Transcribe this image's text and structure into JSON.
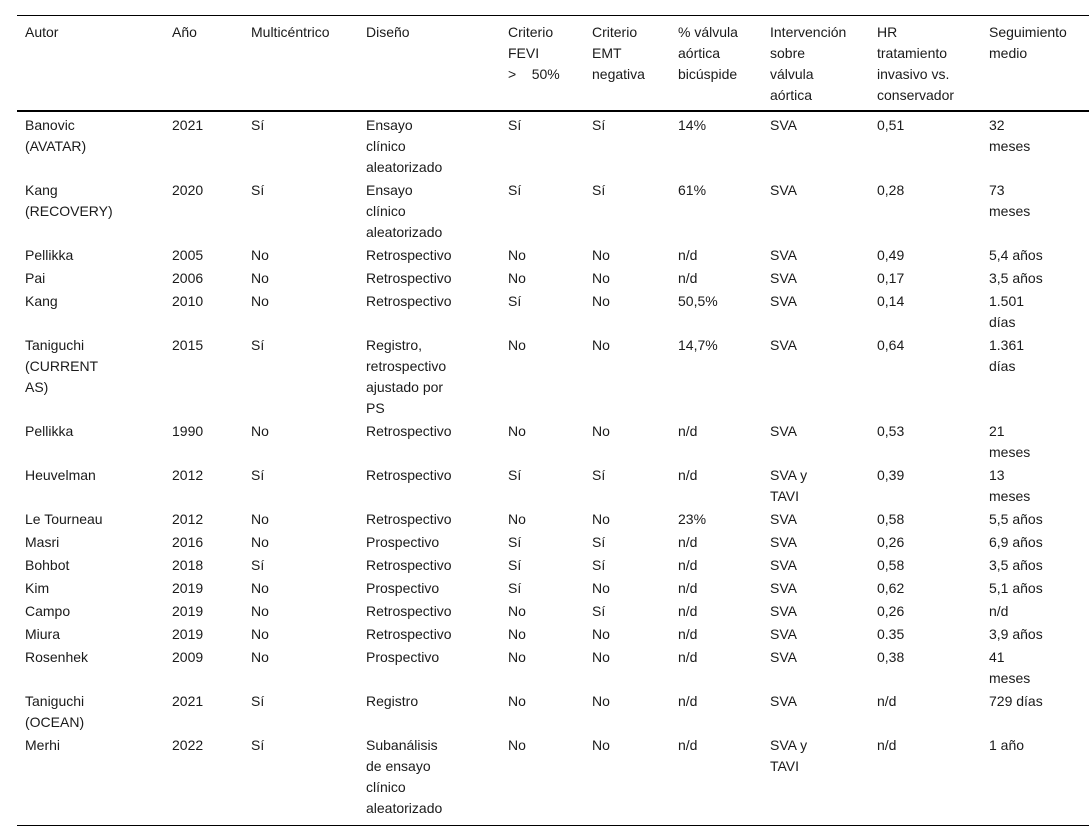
{
  "table": {
    "headers": [
      "Autor",
      "Año",
      "Multicéntrico",
      "Diseño",
      "Criterio\nFEVI\n>    50%",
      "Criterio\nEMT\nnegativa",
      "% válvula\naórtica\nbicúspide",
      "Intervención\nsobre\nválvula\naórtica",
      "HR\ntratamiento\ninvasivo vs.\nconservador",
      "Seguimiento\nmedio"
    ],
    "rows": [
      [
        "Banovic\n(AVATAR)",
        "2021",
        "Sí",
        "Ensayo\nclínico\naleatorizado",
        "Sí",
        "Sí",
        "14%",
        "SVA",
        "0,51",
        "32\nmeses"
      ],
      [
        "Kang\n(RECOVERY)",
        "2020",
        "Sí",
        "Ensayo\nclínico\naleatorizado",
        "Sí",
        "Sí",
        "61%",
        "SVA",
        "0,28",
        "73\nmeses"
      ],
      [
        "Pellikka",
        "2005",
        "No",
        "Retrospectivo",
        "No",
        "No",
        "n/d",
        "SVA",
        "0,49",
        "5,4 años"
      ],
      [
        "Pai",
        "2006",
        "No",
        "Retrospectivo",
        "No",
        "No",
        "n/d",
        "SVA",
        "0,17",
        "3,5 años"
      ],
      [
        "Kang",
        "2010",
        "No",
        "Retrospectivo",
        "Sí",
        "No",
        "50,5%",
        "SVA",
        "0,14",
        "1.501\ndías"
      ],
      [
        "Taniguchi\n(CURRENT\nAS)",
        "2015",
        "Sí",
        "Registro,\nretrospectivo\najustado por\nPS",
        "No",
        "No",
        "14,7%",
        "SVA",
        "0,64",
        "1.361\ndías"
      ],
      [
        "Pellikka",
        "1990",
        "No",
        "Retrospectivo",
        "No",
        "No",
        "n/d",
        "SVA",
        "0,53",
        "21\nmeses"
      ],
      [
        "Heuvelman",
        "2012",
        "Sí",
        "Retrospectivo",
        "Sí",
        "Sí",
        "n/d",
        "SVA y\nTAVI",
        "0,39",
        "13\nmeses"
      ],
      [
        "Le Tourneau",
        "2012",
        "No",
        "Retrospectivo",
        "No",
        "No",
        "23%",
        "SVA",
        "0,58",
        "5,5 años"
      ],
      [
        "Masri",
        "2016",
        "No",
        "Prospectivo",
        "Sí",
        "Sí",
        "n/d",
        "SVA",
        "0,26",
        "6,9 años"
      ],
      [
        "Bohbot",
        "2018",
        "Sí",
        "Retrospectivo",
        "Sí",
        "Sí",
        "n/d",
        "SVA",
        "0,58",
        "3,5 años"
      ],
      [
        "Kim",
        "2019",
        "No",
        "Prospectivo",
        "Sí",
        "No",
        "n/d",
        "SVA",
        "0,62",
        "5,1 años"
      ],
      [
        "Campo",
        "2019",
        "No",
        "Retrospectivo",
        "No",
        "Sí",
        "n/d",
        "SVA",
        "0,26",
        "n/d"
      ],
      [
        "Miura",
        "2019",
        "No",
        "Retrospectivo",
        "No",
        "No",
        "n/d",
        "SVA",
        "0.35",
        "3,9 años"
      ],
      [
        "Rosenhek",
        "2009",
        "No",
        "Prospectivo",
        "No",
        "No",
        "n/d",
        "SVA",
        "0,38",
        "41\nmeses"
      ],
      [
        "Taniguchi\n(OCEAN)",
        "2021",
        "Sí",
        "Registro",
        "No",
        "No",
        "n/d",
        "SVA",
        "n/d",
        "729 días"
      ],
      [
        "Merhi",
        "2022",
        "Sí",
        "Subanálisis\nde ensayo\nclínico\naleatorizado",
        "No",
        "No",
        "n/d",
        "SVA y\nTAVI",
        "n/d",
        "1 año"
      ]
    ]
  }
}
